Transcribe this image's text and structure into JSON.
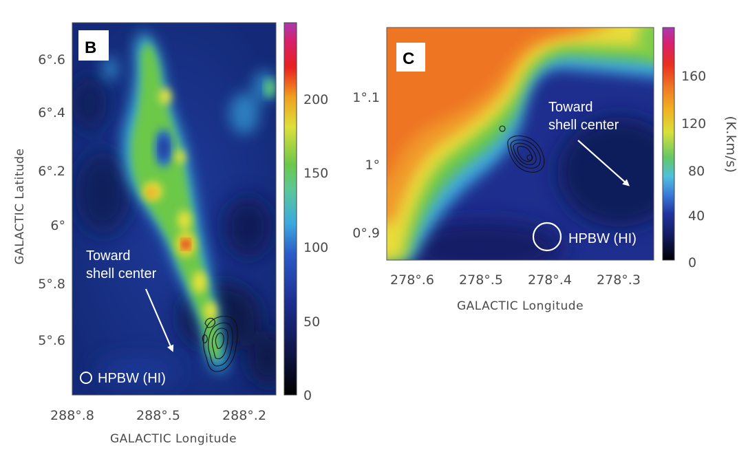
{
  "chart_data": [
    {
      "type": "heatmap",
      "panel_label": "B",
      "xlabel": "GALACTIC  Longitude",
      "ylabel": "GALACTIC  Latitude",
      "x_ticks": [
        "288°.8",
        "288°.5",
        "288°.2"
      ],
      "y_ticks": [
        "6°.6",
        "6°.4",
        "6°.2",
        "6°",
        "5°.8",
        "5°.6"
      ],
      "colorbar": {
        "ticks": [
          "0",
          "50",
          "100",
          "150",
          "200"
        ],
        "range": [
          0,
          250
        ],
        "unit": ""
      },
      "annotation": [
        "Toward",
        "shell center"
      ],
      "beam_label": "HPBW (HI)",
      "colors": [
        "#000000",
        "#1a2a8a",
        "#2e6fd8",
        "#3fc4e0",
        "#5ec86a",
        "#e8e23a",
        "#f08a1e",
        "#e0152a",
        "#c0309a"
      ]
    },
    {
      "type": "heatmap",
      "panel_label": "C",
      "xlabel": "GALACTIC  Longitude",
      "ylabel": "",
      "x_ticks": [
        "278°.6",
        "278°.5",
        "278°.4",
        "278°.3"
      ],
      "y_ticks": [
        "1°.1",
        "1°",
        "0°.9"
      ],
      "colorbar": {
        "ticks": [
          "0",
          "40",
          "80",
          "120",
          "160"
        ],
        "range": [
          0,
          190
        ],
        "unit": "(K.km/s)"
      },
      "annotation": [
        "Toward",
        "shell center"
      ],
      "beam_label": "HPBW (HI)"
    }
  ]
}
